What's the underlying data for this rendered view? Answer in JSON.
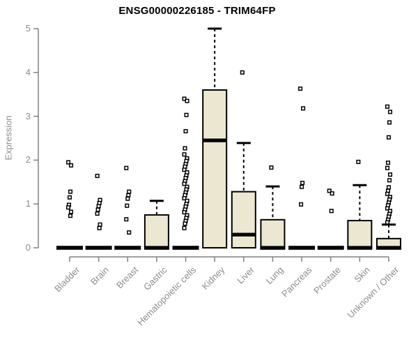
{
  "chart_data": {
    "type": "boxplot",
    "title": "ENSG00000226185 - TRIM64FP",
    "ylabel": "Expression",
    "xlabel": "",
    "ylim": [
      0,
      5
    ],
    "yticks": [
      0,
      1,
      2,
      3,
      4,
      5
    ],
    "grid": false,
    "legend": "none",
    "colors": {
      "box_fill": "#ece7d0",
      "box_stroke": "#000000",
      "median": "#000000",
      "axis": "#808080",
      "tick_label": "#8c8c8c",
      "title": "#000000"
    },
    "categories": [
      "Bladder",
      "Brain",
      "Breast",
      "Gastric",
      "Hematopoietic cells",
      "Kidney",
      "Liver",
      "Lung",
      "Pancreas",
      "Prostate",
      "Skin",
      "Unknown / Other"
    ],
    "boxes": [
      {
        "label": "Bladder",
        "q1": 0,
        "median": 0,
        "q3": 0,
        "whisker_low": 0,
        "whisker_high": 0,
        "outliers": [
          1.95,
          1.88,
          1.28,
          1.15,
          0.98,
          0.92,
          0.82,
          0.73
        ]
      },
      {
        "label": "Brain",
        "q1": 0,
        "median": 0,
        "q3": 0,
        "whisker_low": 0,
        "whisker_high": 0,
        "outliers": [
          1.64,
          1.09,
          1.02,
          0.95,
          0.87,
          0.78,
          0.53,
          0.45
        ]
      },
      {
        "label": "Breast",
        "q1": 0,
        "median": 0,
        "q3": 0,
        "whisker_low": 0,
        "whisker_high": 0,
        "outliers": [
          1.82,
          1.28,
          1.2,
          1.12,
          0.96,
          0.65,
          0.35
        ]
      },
      {
        "label": "Gastric",
        "q1": 0,
        "median": 0,
        "q3": 0.75,
        "whisker_low": 0,
        "whisker_high": 1.07,
        "outliers": []
      },
      {
        "label": "Hematopoietic cells",
        "q1": 0,
        "median": 0,
        "q3": 0,
        "whisker_low": 0,
        "whisker_high": 0,
        "outliers": [
          3.4,
          3.35,
          3.03,
          2.66,
          2.27,
          2.13,
          2.04,
          1.98,
          1.91,
          1.85,
          1.78,
          1.72,
          1.65,
          1.59,
          1.52,
          1.46,
          1.39,
          1.33,
          1.26,
          1.2,
          1.13,
          1.07,
          1.0,
          0.94,
          0.87,
          0.81,
          0.74,
          0.68,
          0.61,
          0.55,
          0.45
        ]
      },
      {
        "label": "Kidney",
        "q1": 0,
        "median": 2.45,
        "q3": 3.6,
        "whisker_low": 0,
        "whisker_high": 5.0,
        "outliers": []
      },
      {
        "label": "Liver",
        "q1": 0,
        "median": 0.3,
        "q3": 1.28,
        "whisker_low": 0,
        "whisker_high": 2.39,
        "outliers": [
          4.0
        ]
      },
      {
        "label": "Lung",
        "q1": 0,
        "median": 0,
        "q3": 0.64,
        "whisker_low": 0,
        "whisker_high": 1.4,
        "outliers": [
          1.83
        ]
      },
      {
        "label": "Pancreas",
        "q1": 0,
        "median": 0,
        "q3": 0,
        "whisker_low": 0,
        "whisker_high": 0,
        "outliers": [
          3.63,
          3.18,
          1.48,
          1.39,
          0.99
        ]
      },
      {
        "label": "Prostate",
        "q1": 0,
        "median": 0,
        "q3": 0,
        "whisker_low": 0,
        "whisker_high": 0,
        "outliers": [
          1.3,
          1.24,
          0.84
        ]
      },
      {
        "label": "Skin",
        "q1": 0,
        "median": 0,
        "q3": 0.62,
        "whisker_low": 0,
        "whisker_high": 1.43,
        "outliers": [
          1.96
        ]
      },
      {
        "label": "Unknown / Other",
        "q1": 0,
        "median": 0,
        "q3": 0.21,
        "whisker_low": 0,
        "whisker_high": 0.53,
        "outliers": [
          3.22,
          3.1,
          2.86,
          2.52,
          1.94,
          1.82,
          1.67,
          1.54,
          1.38,
          1.3,
          1.23,
          1.16,
          1.1,
          1.03,
          0.97,
          0.9,
          0.84,
          0.77,
          0.71,
          0.64,
          0.58
        ]
      }
    ]
  }
}
